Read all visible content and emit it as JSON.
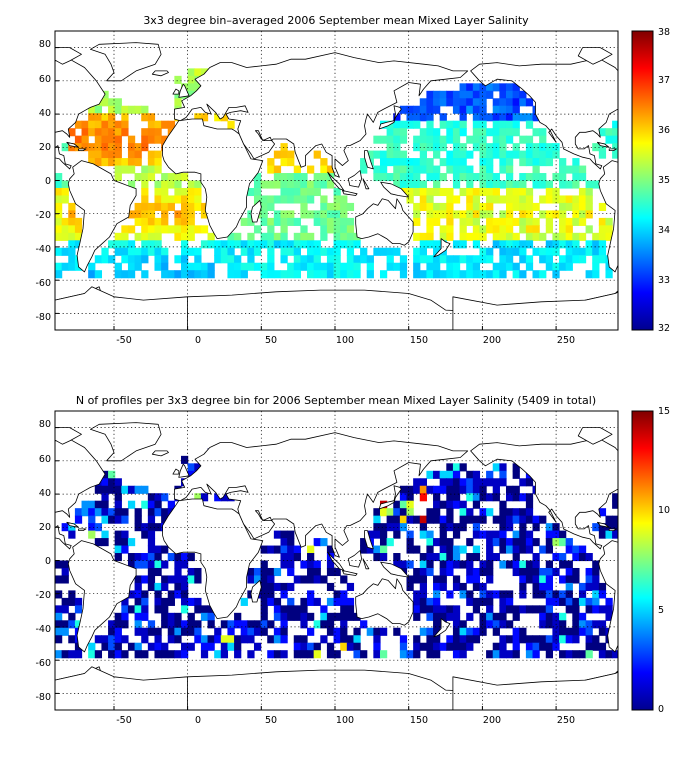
{
  "panels": [
    {
      "title": "3x3 degree bin–averaged 2006 September mean Mixed Layer Salinity",
      "x_ticks": [
        "-50",
        "0",
        "50",
        "100",
        "150",
        "200",
        "250"
      ],
      "y_ticks": [
        "80",
        "60",
        "40",
        "20",
        "0",
        "-20",
        "-40",
        "-60",
        "-80"
      ],
      "colorbar_ticks": [
        "38",
        "37",
        "36",
        "35",
        "34",
        "33",
        "32"
      ],
      "colorbar_range": [
        32,
        38
      ],
      "colormap": "jet"
    },
    {
      "title": "N of profiles per 3x3 degree bin for 2006 September mean Mixed Layer Salinity  (5409 in total)",
      "x_ticks": [
        "-50",
        "0",
        "50",
        "100",
        "150",
        "200",
        "250"
      ],
      "y_ticks": [
        "80",
        "60",
        "40",
        "20",
        "0",
        "-20",
        "-40",
        "-60",
        "-80"
      ],
      "colorbar_ticks": [
        "15",
        "10",
        "5",
        "0"
      ],
      "colorbar_range": [
        0,
        15
      ],
      "colormap": "jet"
    }
  ],
  "map": {
    "lon_range": [
      -90,
      292
    ],
    "lat_range": [
      -90,
      90
    ],
    "bin_size_deg": 3,
    "gridlines": "dotted",
    "land_color": "#ffffff",
    "coastline_color": "#000000"
  }
}
